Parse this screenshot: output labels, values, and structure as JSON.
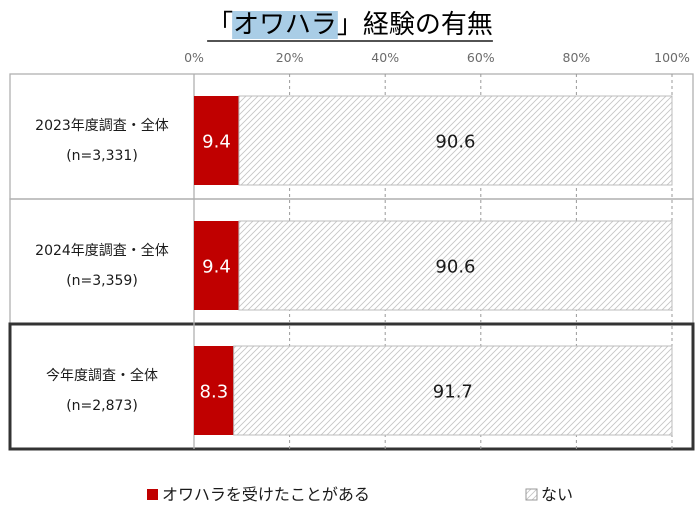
{
  "chart_data": {
    "type": "bar",
    "orientation": "horizontal",
    "stacked": true,
    "title": "「オワハラ」経験の有無",
    "title_highlight": "オワハラ",
    "categories": [
      [
        "2023年度調査・全体",
        "(n=3,331)"
      ],
      [
        "2024年度調査・全体",
        "(n=3,359)"
      ],
      [
        "今年度調査・全体",
        "(n=2,873)"
      ]
    ],
    "series": [
      {
        "name": "オワハラを受けたことがある",
        "values": [
          9.4,
          9.4,
          8.3
        ],
        "color": "#c00000",
        "label_color": "#ffffff"
      },
      {
        "name": "ない",
        "values": [
          90.6,
          90.6,
          91.7
        ],
        "color": "#ffffff",
        "pattern": "diagonal-hatch",
        "label_color": "#1a1a1a"
      }
    ],
    "xlim": [
      0,
      100
    ],
    "xticks": [
      0,
      20,
      40,
      60,
      80,
      100
    ],
    "xtick_labels": [
      "0%",
      "20%",
      "40%",
      "60%",
      "80%",
      "100%"
    ],
    "highlighted_category": "今年度調査・全体",
    "grid": "vertical-dashed",
    "legend_position": "bottom",
    "colors": {
      "highlight_bg": "#a9cde6",
      "title_underline": "#1a1a1a"
    }
  }
}
